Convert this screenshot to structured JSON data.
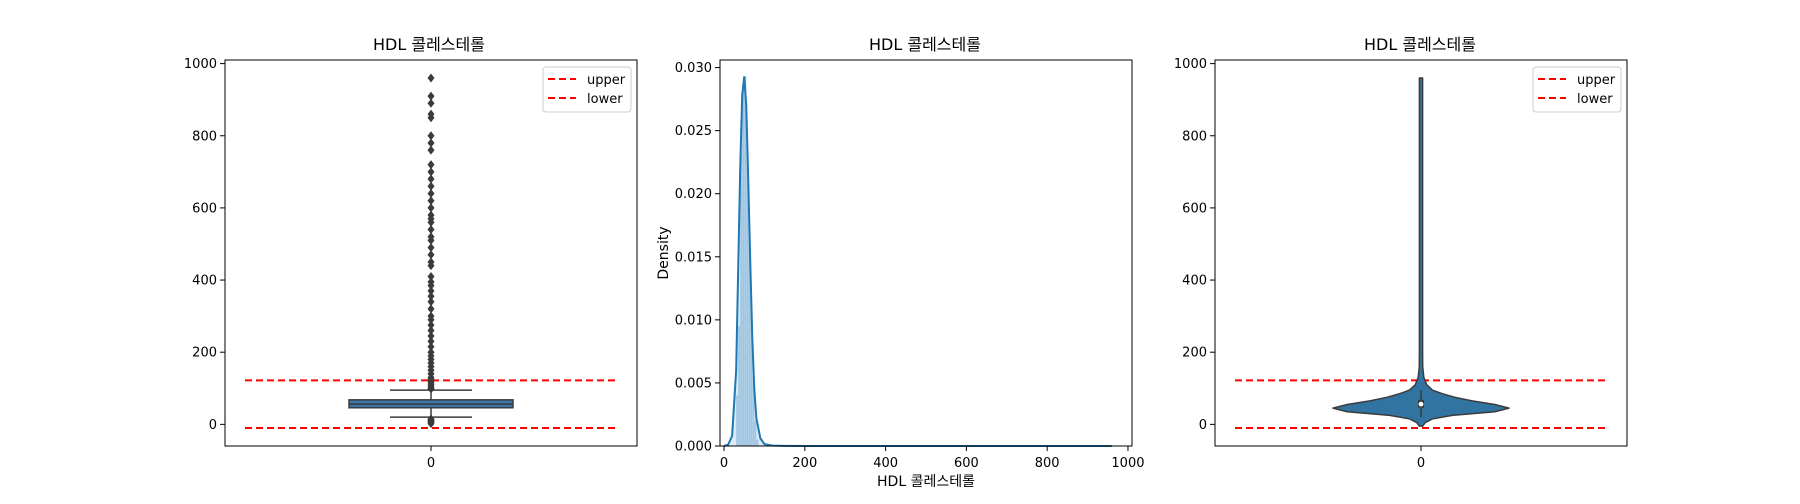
{
  "colors": {
    "box": "#3a75a8",
    "line": "#3b3b3b",
    "threshold": "#ff0000",
    "kde": "#1f77b4",
    "hist": "#9ec5e2",
    "violin": "#3274a1"
  },
  "chart_data": [
    {
      "type": "box",
      "title": "HDL 콜레스테롤",
      "xlabel": "",
      "ylabel": "",
      "categories": [
        "0"
      ],
      "ylim": [
        -60,
        1010
      ],
      "yticks": [
        0,
        200,
        400,
        600,
        800,
        1000
      ],
      "box": {
        "q1": 46,
        "median": 56,
        "q3": 68,
        "whisker_low": 20,
        "whisker_high": 95
      },
      "outliers": [
        2,
        5,
        8,
        10,
        12,
        15,
        98,
        100,
        105,
        110,
        115,
        120,
        125,
        130,
        140,
        150,
        160,
        170,
        180,
        190,
        200,
        215,
        230,
        245,
        260,
        275,
        290,
        300,
        320,
        340,
        355,
        370,
        385,
        395,
        410,
        440,
        450,
        470,
        490,
        510,
        520,
        540,
        560,
        570,
        580,
        600,
        620,
        640,
        660,
        680,
        700,
        720,
        760,
        780,
        800,
        850,
        860,
        890,
        910,
        960
      ],
      "thresholds": {
        "upper": 122,
        "lower": -10
      },
      "legend": {
        "position": "top-right",
        "entries": [
          "upper",
          "lower"
        ]
      }
    },
    {
      "type": "area",
      "title": "HDL 콜레스테롤",
      "xlabel": "HDL 콜레스테롤",
      "ylabel": "Density",
      "xlim": [
        -10,
        1010
      ],
      "ylim": [
        0,
        0.0306
      ],
      "xticks": [
        0,
        200,
        400,
        600,
        800,
        1000
      ],
      "yticks": [
        0.0,
        0.005,
        0.01,
        0.015,
        0.02,
        0.025,
        0.03
      ],
      "kde": {
        "x": [
          0,
          10,
          20,
          30,
          35,
          40,
          45,
          50,
          55,
          60,
          65,
          70,
          75,
          80,
          90,
          100,
          120,
          150,
          200,
          300,
          500,
          700,
          960
        ],
        "y": [
          0,
          0.0001,
          0.0008,
          0.006,
          0.014,
          0.022,
          0.0278,
          0.0293,
          0.027,
          0.021,
          0.0145,
          0.0085,
          0.0045,
          0.0022,
          0.0006,
          0.00015,
          3e-05,
          1e-05,
          5e-06,
          3e-06,
          2e-06,
          2e-06,
          1e-06
        ]
      },
      "histogram": {
        "bin_edges": [
          30,
          35,
          40,
          45,
          50,
          55,
          60,
          65,
          70,
          75,
          80,
          85
        ],
        "density": [
          0.004,
          0.0095,
          0.0232,
          0.0285,
          0.0293,
          0.0235,
          0.0175,
          0.0105,
          0.0055,
          0.002,
          0.0005
        ]
      }
    },
    {
      "type": "violin",
      "title": "HDL 콜레스테롤",
      "xlabel": "",
      "ylabel": "",
      "categories": [
        "0"
      ],
      "ylim": [
        -60,
        1010
      ],
      "yticks": [
        0,
        200,
        400,
        600,
        800,
        1000
      ],
      "violin": {
        "y": [
          -5,
          5,
          15,
          25,
          35,
          45,
          55,
          65,
          75,
          85,
          95,
          110,
          130,
          160,
          200,
          400,
          700,
          960
        ],
        "halfwidth": [
          0.01,
          0.03,
          0.08,
          0.22,
          0.52,
          0.62,
          0.52,
          0.36,
          0.24,
          0.15,
          0.08,
          0.04,
          0.02,
          0.012,
          0.008,
          0.006,
          0.006,
          0.005
        ],
        "q1": 46,
        "median": 56,
        "q3": 68,
        "whisker_low": 20,
        "whisker_high": 95
      },
      "thresholds": {
        "upper": 122,
        "lower": -10
      },
      "legend": {
        "position": "top-right",
        "entries": [
          "upper",
          "lower"
        ]
      }
    }
  ]
}
